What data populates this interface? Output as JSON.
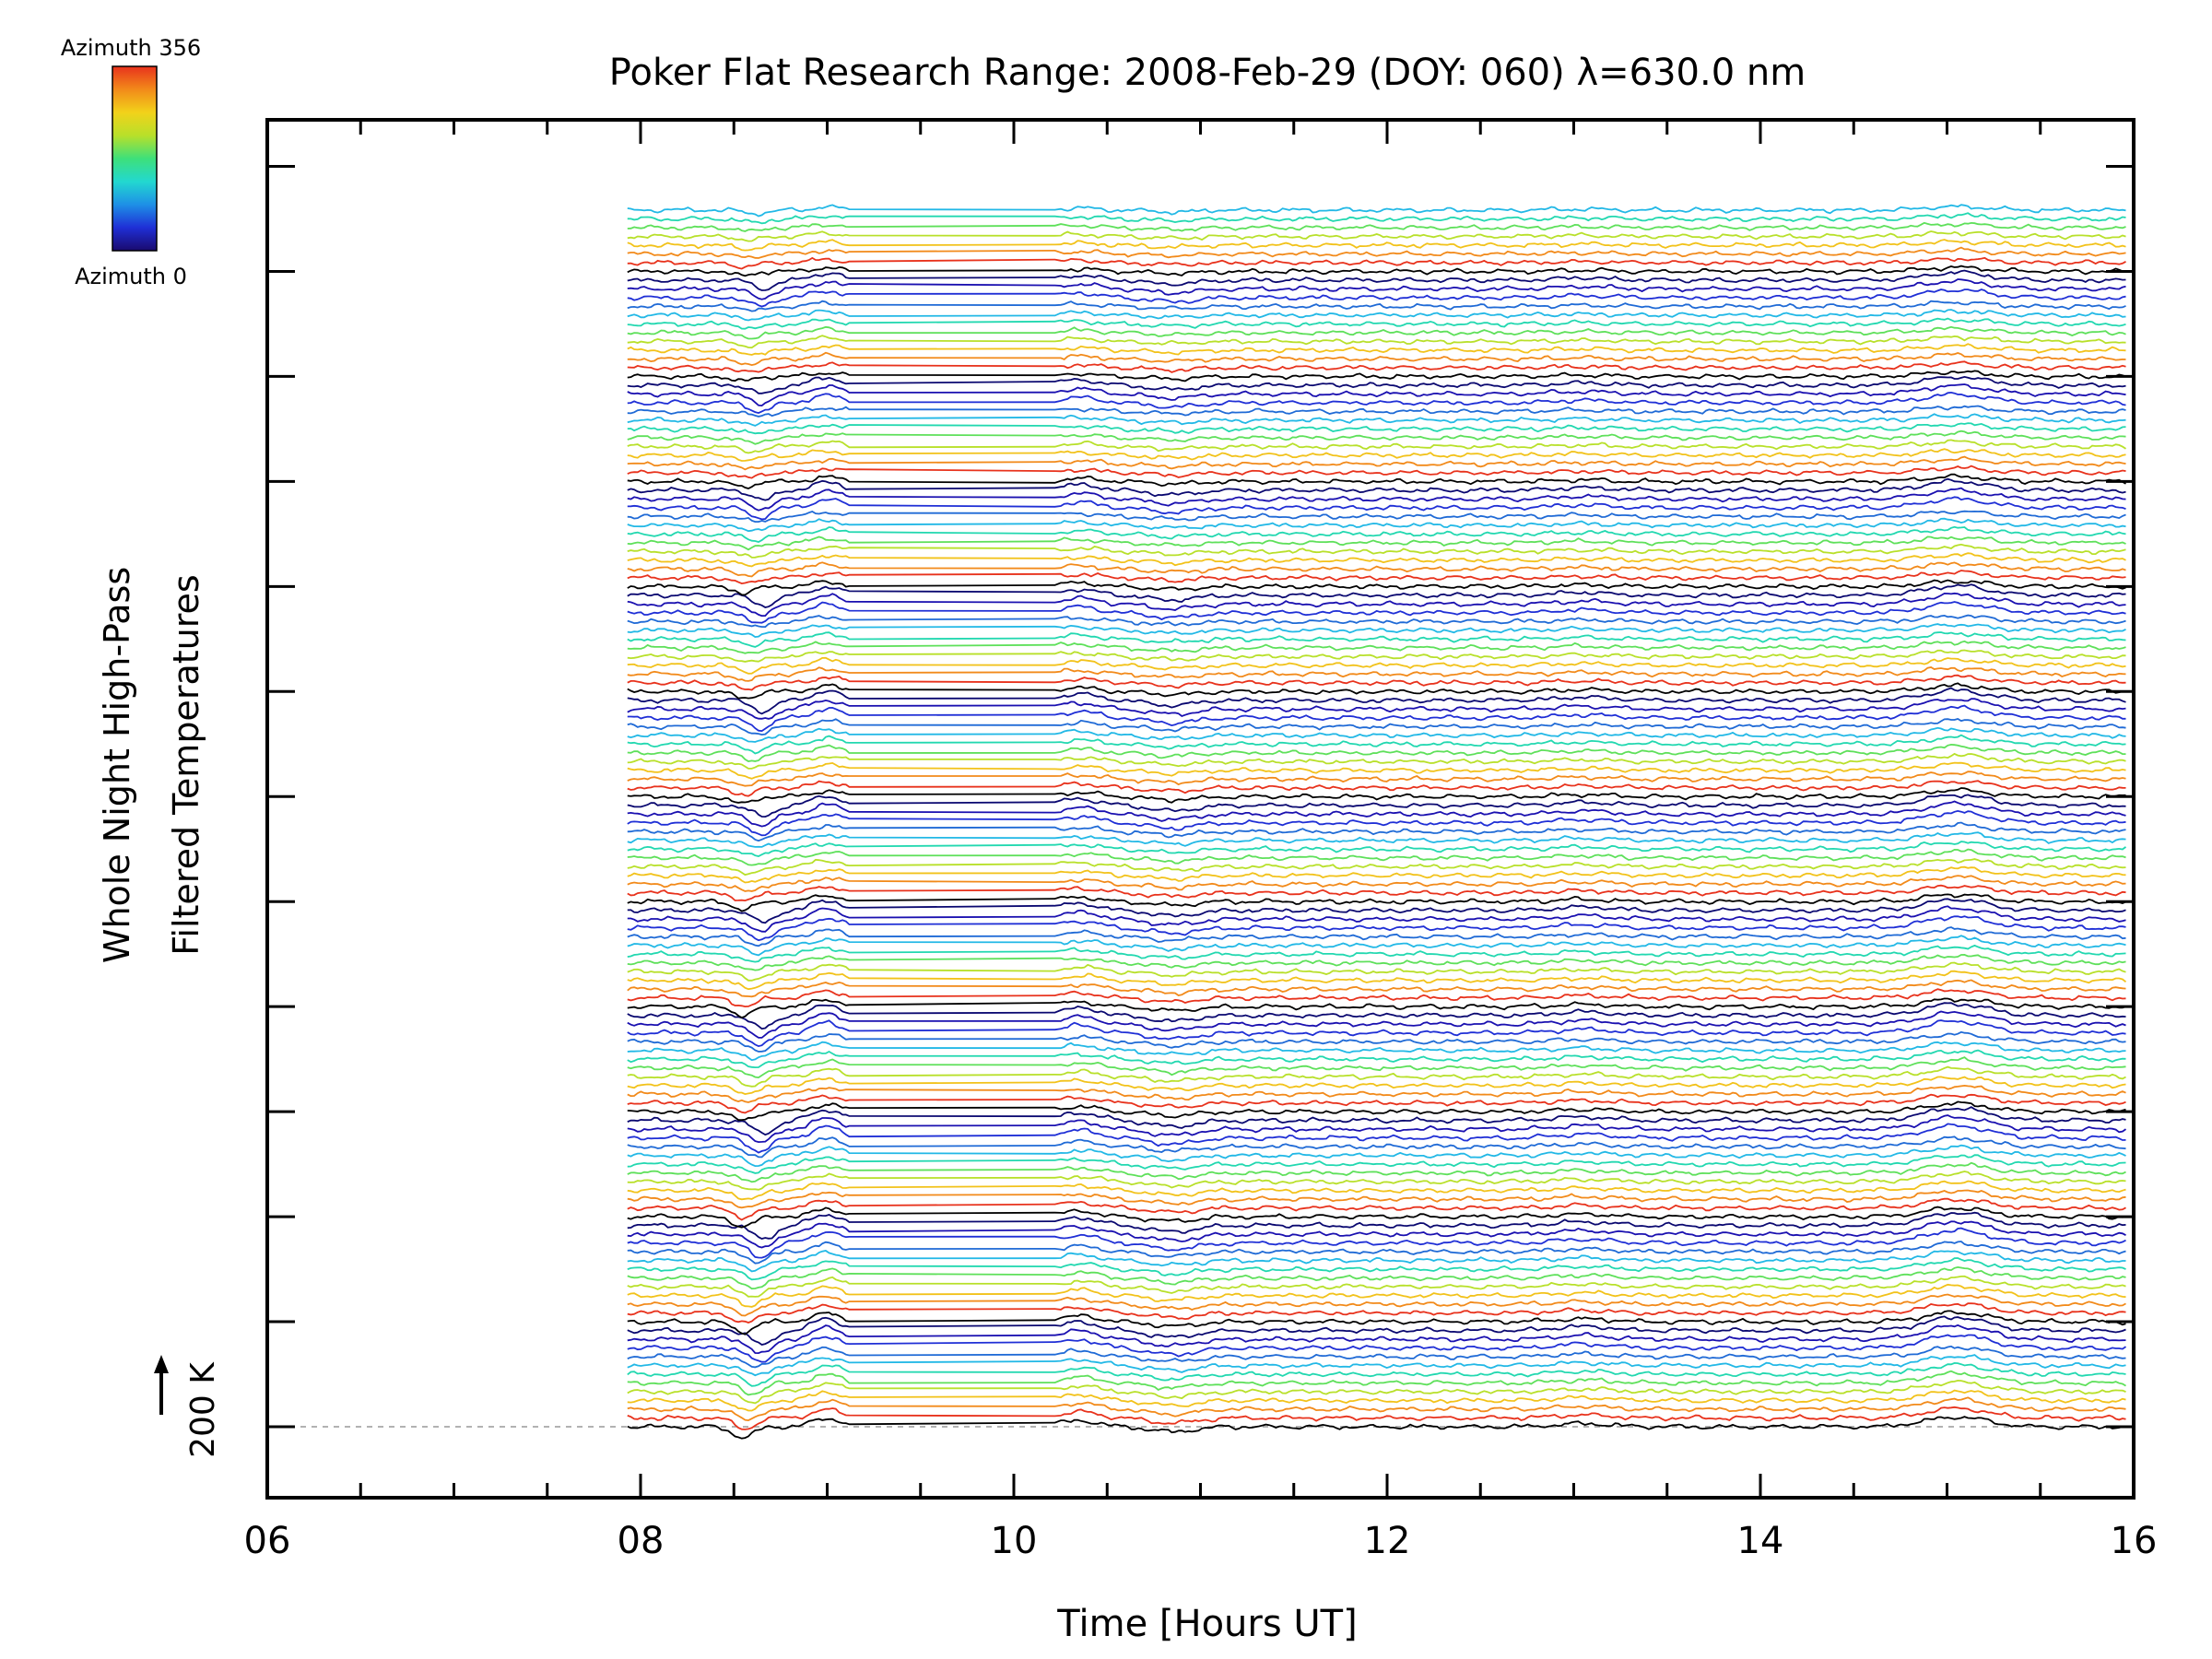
{
  "chart_data": {
    "type": "line",
    "title": "Poker Flat Research Range: 2008-Feb-29 (DOY: 060) λ=630.0 nm",
    "xlabel": "Time [Hours UT]",
    "ylabel_line1": "Whole Night High-Pass",
    "ylabel_line2": "Filtered Temperatures",
    "xlim": [
      6,
      16
    ],
    "x_ticks": [
      "06",
      "08",
      "10",
      "12",
      "14",
      "16"
    ],
    "scale_bar_label": "200 K",
    "colorbar": {
      "top_label": "Azimuth 356",
      "bottom_label": "Azimuth 0",
      "colors": [
        "#1a0a6e",
        "#1f2fd6",
        "#1e90e6",
        "#22d8d0",
        "#3ee07a",
        "#b8e02a",
        "#f2d21a",
        "#f28a1a",
        "#e8321c"
      ]
    },
    "data_start_hour": 7.93,
    "data_end_hour": 15.97,
    "gap_hours": [
      9.12,
      10.22
    ],
    "n_traces": 140,
    "traces_per_azimuth_cycle": 12,
    "azimuth_cycle_colors": [
      "#000000",
      "#e8321c",
      "#f28a1a",
      "#f2c21a",
      "#b8e02a",
      "#5ee05a",
      "#22d8b0",
      "#22b8e6",
      "#1f6ad6",
      "#1f2fd6",
      "#1a10b0",
      "#0a0870"
    ],
    "events": [
      {
        "hour": 8.55,
        "amplitude_k": -45
      },
      {
        "hour": 9.0,
        "amplitude_k": 35
      },
      {
        "hour": 10.35,
        "amplitude_k": 25
      },
      {
        "hour": 10.85,
        "amplitude_k": -20
      },
      {
        "hour": 13.05,
        "amplitude_k": 12
      },
      {
        "hour": 15.05,
        "amplitude_k": 40
      }
    ],
    "grid": false
  }
}
